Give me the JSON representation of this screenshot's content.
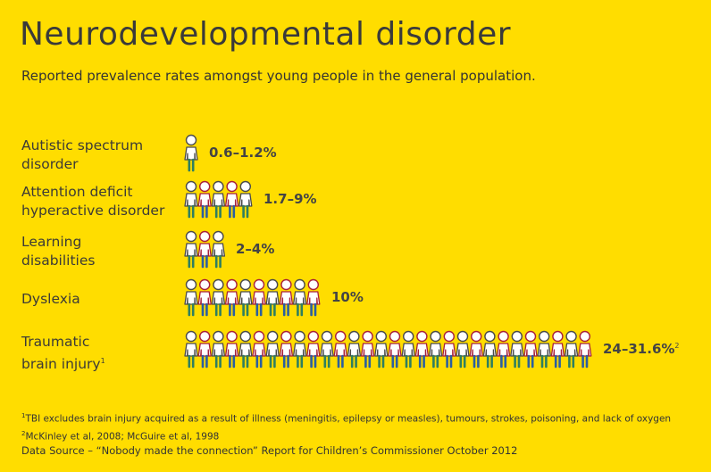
{
  "title": "Neurodevelopmental disorder",
  "subtitle": "Reported prevalence rates amongst young people in the general population.",
  "chart_data": {
    "type": "pictogram",
    "title": "Neurodevelopmental disorder",
    "subtitle": "Reported prevalence rates amongst young people in the general population.",
    "unit": "%",
    "rows": [
      {
        "label_line1": "Autistic spectrum",
        "label_line2": "disorder",
        "label_sup": "",
        "value_text": "0.6–1.2%",
        "value_sup": "",
        "range": [
          0.6,
          1.2
        ],
        "icons": 1
      },
      {
        "label_line1": "Attention deficit",
        "label_line2": "hyperactive disorder",
        "label_sup": "",
        "value_text": "1.7–9%",
        "value_sup": "",
        "range": [
          1.7,
          9
        ],
        "icons": 5
      },
      {
        "label_line1": "Learning",
        "label_line2": "disabilities",
        "label_sup": "",
        "value_text": "2–4%",
        "value_sup": "",
        "range": [
          2,
          4
        ],
        "icons": 3
      },
      {
        "label_line1": "Dyslexia",
        "label_line2": "",
        "label_sup": "",
        "value_text": "10%",
        "value_sup": "",
        "range": [
          10,
          10
        ],
        "icons": 10
      },
      {
        "label_line1": "Traumatic",
        "label_line2": "brain injury",
        "label_sup": "1",
        "value_text": "24–31.6%",
        "value_sup": "2",
        "range": [
          24,
          31.6
        ],
        "icons": 30
      }
    ],
    "icon_outline_colors": [
      "#4a4a4a",
      "#a8203a"
    ],
    "icon_leg_colors": [
      "#2f7f5f",
      "#2a5fa0"
    ]
  },
  "footnotes": {
    "note1_marker": "1",
    "note1": "TBI excludes brain injury acquired as a result of illness (meningitis, epilepsy or measles), tumours, strokes, poisoning, and lack of oxygen",
    "note2_marker": "2",
    "note2": "McKinley et al, 2008; McGuire et al, 1998",
    "source": "Data Source – “Nobody made the connection” Report for Children’s Commissioner October 2012"
  },
  "colors": {
    "background": "#FFDD00",
    "text": "#3c3a36"
  }
}
